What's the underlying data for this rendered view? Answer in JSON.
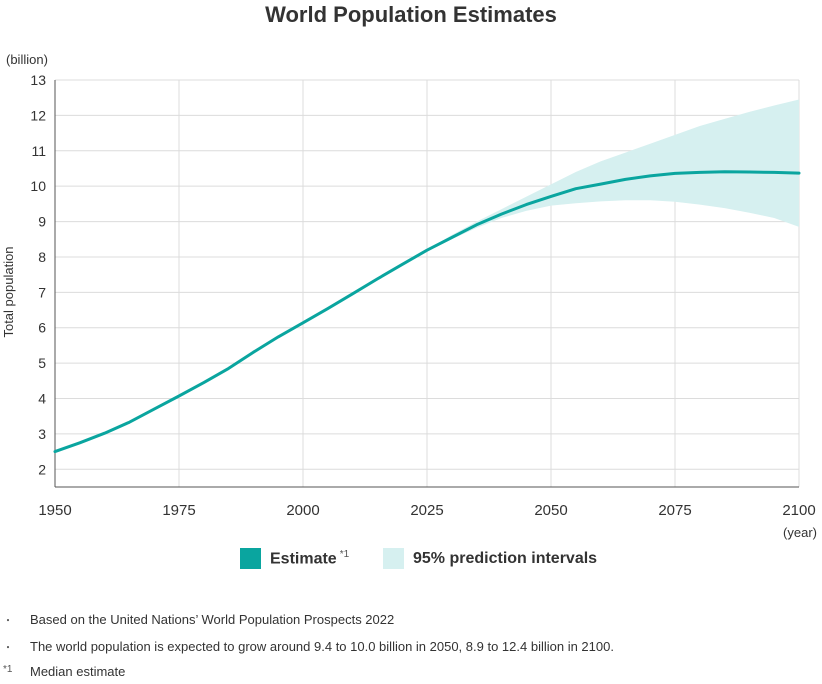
{
  "chart_data": {
    "type": "line",
    "title": "World Population Estimates",
    "y_unit": "(billion)",
    "x_unit": "(year)",
    "ylabel": "Total population",
    "xlabel": "",
    "xlim": [
      1950,
      2100
    ],
    "ylim": [
      1.5,
      13
    ],
    "x_ticks": [
      1950,
      1975,
      2000,
      2025,
      2050,
      2075,
      2100
    ],
    "y_ticks": [
      2,
      3,
      4,
      5,
      6,
      7,
      8,
      9,
      10,
      11,
      12,
      13
    ],
    "grid": true,
    "legend_position": "bottom-center",
    "series": [
      {
        "name": "Estimate",
        "name_sup": "*1",
        "color": "#0aa59f",
        "x": [
          1950,
          1955,
          1960,
          1965,
          1970,
          1975,
          1980,
          1985,
          1990,
          1995,
          2000,
          2005,
          2010,
          2015,
          2020,
          2025,
          2030,
          2035,
          2040,
          2045,
          2050,
          2055,
          2060,
          2065,
          2070,
          2075,
          2080,
          2085,
          2090,
          2095,
          2100
        ],
        "y": [
          2.5,
          2.75,
          3.02,
          3.33,
          3.7,
          4.07,
          4.45,
          4.85,
          5.31,
          5.74,
          6.14,
          6.54,
          6.96,
          7.38,
          7.79,
          8.19,
          8.55,
          8.91,
          9.21,
          9.48,
          9.71,
          9.93,
          10.06,
          10.19,
          10.29,
          10.36,
          10.39,
          10.41,
          10.4,
          10.39,
          10.37
        ]
      },
      {
        "name": "95% prediction intervals",
        "type": "band",
        "color": "#d6f0f0",
        "x": [
          2022,
          2030,
          2035,
          2040,
          2045,
          2050,
          2055,
          2060,
          2065,
          2070,
          2075,
          2080,
          2085,
          2090,
          2095,
          2100
        ],
        "lower": [
          7.95,
          8.5,
          8.82,
          9.1,
          9.3,
          9.45,
          9.52,
          9.57,
          9.6,
          9.6,
          9.56,
          9.48,
          9.38,
          9.25,
          9.1,
          8.85
        ],
        "upper": [
          7.95,
          8.62,
          9.0,
          9.35,
          9.7,
          10.05,
          10.4,
          10.7,
          10.95,
          11.2,
          11.45,
          11.7,
          11.9,
          12.1,
          12.28,
          12.45
        ]
      }
    ]
  },
  "legend": {
    "estimate_label": "Estimate",
    "estimate_sup": "*1",
    "interval_label": "95% prediction intervals"
  },
  "notes": [
    {
      "mark": "・",
      "text": "Based on the United Nations’ World Population Prospects 2022"
    },
    {
      "mark": "・",
      "text": "The world population is expected to grow around 9.4 to 10.0 billion in 2050, 8.9 to 12.4 billion in 2100."
    },
    {
      "mark": "*1",
      "text": "Median estimate"
    }
  ]
}
